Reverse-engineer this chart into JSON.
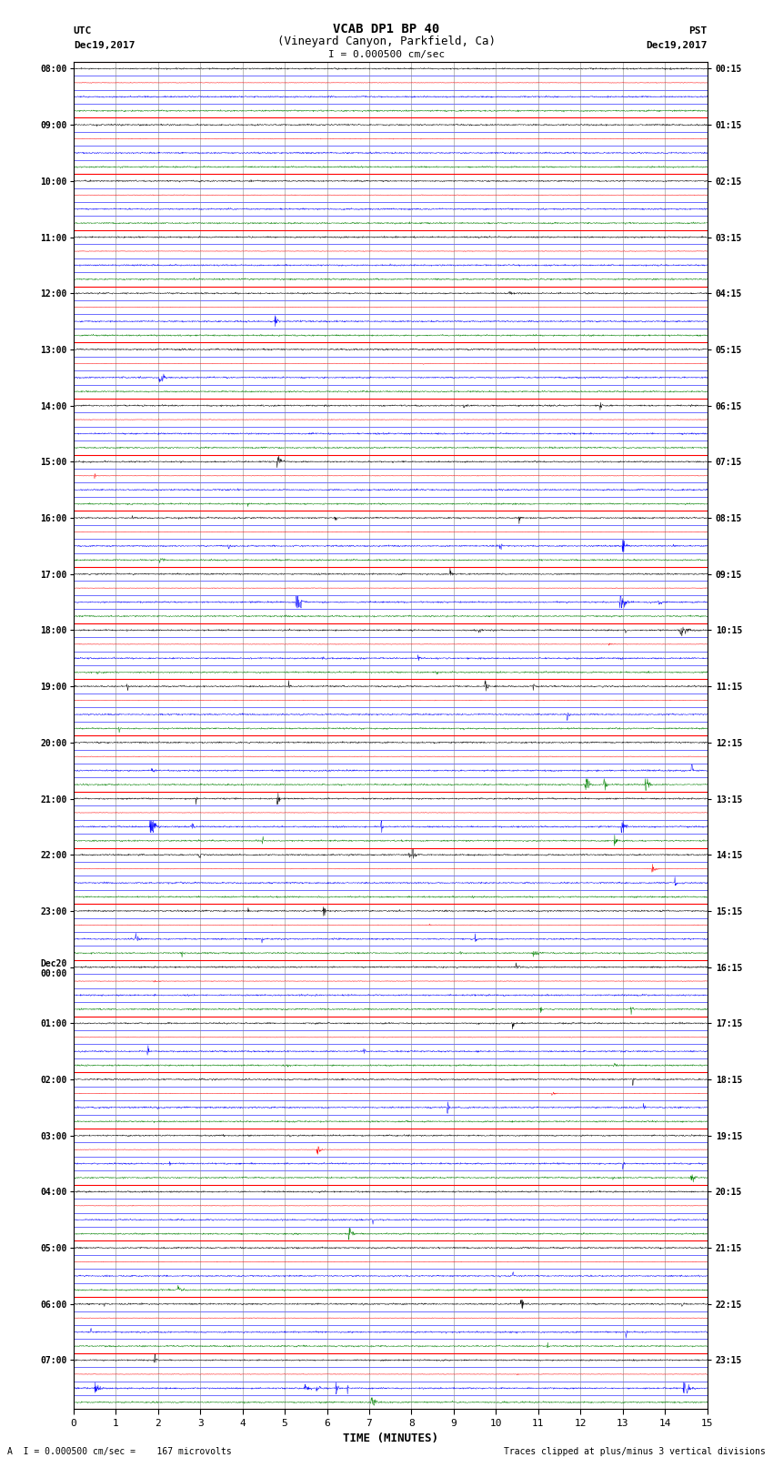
{
  "title_line1": "VCAB DP1 BP 40",
  "title_line2": "(Vineyard Canyon, Parkfield, Ca)",
  "scale_label": "I = 0.000500 cm/sec",
  "left_header_line1": "UTC",
  "left_header_line2": "Dec19,2017",
  "right_header_line1": "PST",
  "right_header_line2": "Dec19,2017",
  "footer_left": "A  I = 0.000500 cm/sec =    167 microvolts",
  "footer_right": "Traces clipped at plus/minus 3 vertical divisions",
  "xlabel": "TIME (MINUTES)",
  "utc_labels": [
    "08:00",
    "09:00",
    "10:00",
    "11:00",
    "12:00",
    "13:00",
    "14:00",
    "15:00",
    "16:00",
    "17:00",
    "18:00",
    "19:00",
    "20:00",
    "21:00",
    "22:00",
    "23:00",
    "Dec20\n00:00",
    "01:00",
    "02:00",
    "03:00",
    "04:00",
    "05:00",
    "06:00",
    "07:00"
  ],
  "pst_labels": [
    "00:15",
    "01:15",
    "02:15",
    "03:15",
    "04:15",
    "05:15",
    "06:15",
    "07:15",
    "08:15",
    "09:15",
    "10:15",
    "11:15",
    "12:15",
    "13:15",
    "14:15",
    "15:15",
    "16:15",
    "17:15",
    "18:15",
    "19:15",
    "20:15",
    "21:15",
    "22:15",
    "23:15"
  ],
  "trace_colors": [
    "black",
    "red",
    "blue",
    "green"
  ],
  "n_hours": 24,
  "minutes_per_trace": 15,
  "background_color": "white",
  "noise_amp": 0.04,
  "clip_val": 0.42
}
